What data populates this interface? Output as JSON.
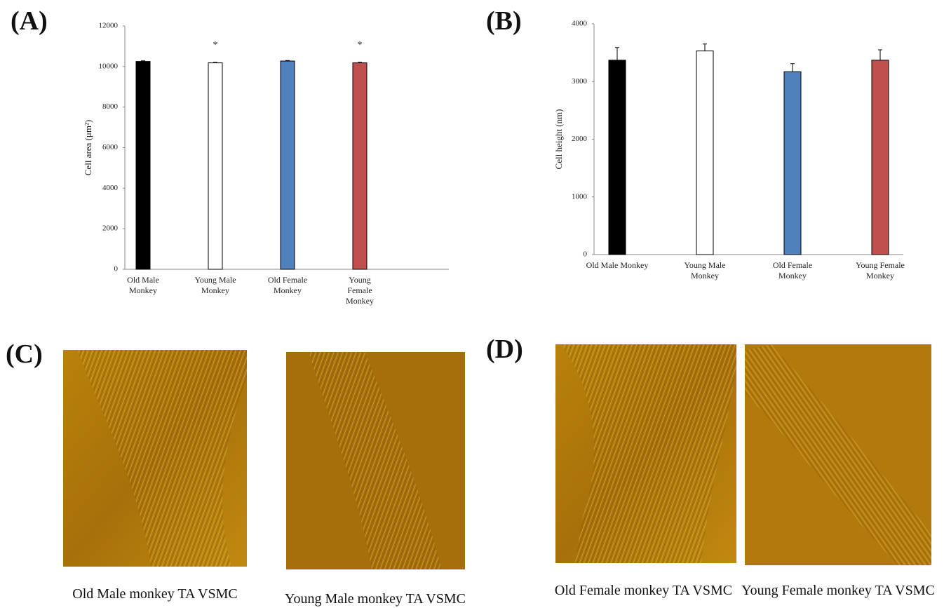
{
  "chart_data": [
    {
      "type": "bar",
      "panel": "(A)",
      "y_label": "Cell area (μm²)",
      "categories": [
        "Old Male Monkey",
        "Young Male Monkey",
        "Old Female Monkey",
        "Young Female Monkey"
      ],
      "values": [
        10250,
        10180,
        10270,
        10180
      ],
      "errors": [
        30,
        25,
        25,
        30
      ],
      "significance": [
        null,
        "*",
        null,
        "*"
      ],
      "colors": [
        "#000000",
        "#ffffff",
        "#4f81bd",
        "#c0504d"
      ],
      "ylim": [
        0,
        12000
      ],
      "yticks": [
        0,
        2000,
        4000,
        6000,
        8000,
        10000,
        12000
      ],
      "grid": false
    },
    {
      "type": "bar",
      "panel": "(B)",
      "y_label": "Cell height (nm)",
      "categories": [
        "Old Male Monkey",
        "Young Male Monkey",
        "Old Female Monkey",
        "Young Female Monkey"
      ],
      "values": [
        3370,
        3530,
        3170,
        3370
      ],
      "errors": [
        220,
        120,
        140,
        180
      ],
      "colors": [
        "#000000",
        "#ffffff",
        "#4f81bd",
        "#c0504d"
      ],
      "ylim": [
        0,
        4000
      ],
      "yticks": [
        0,
        1000,
        2000,
        3000,
        4000
      ],
      "grid": false
    }
  ],
  "images": {
    "panel_c": "(C)",
    "panel_d": "(D)",
    "captions": [
      "Old Male monkey TA VSMC",
      "Young Male monkey TA VSMC",
      "Old Female monkey TA VSMC",
      "Young Female monkey TA VSMC"
    ]
  }
}
